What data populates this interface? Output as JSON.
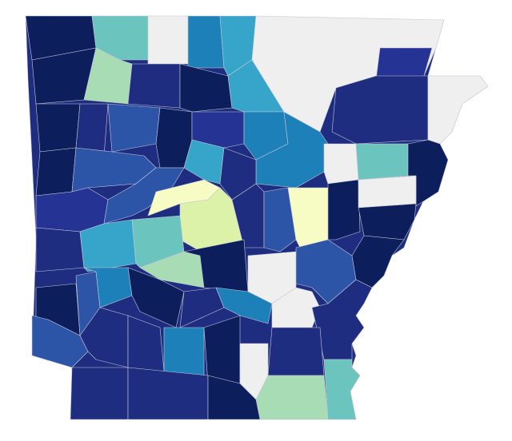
{
  "map": {
    "colors": {
      "navy": "#0c1f5c",
      "deep": "#1e2d80",
      "indigo": "#253494",
      "royal": "#2c55a8",
      "blue": "#1d80b8",
      "cyan": "#36a5c9",
      "teal": "#6cc4be",
      "mint": "#a7dcb5",
      "lime": "#dcf2a8",
      "yellow": "#f7fcc4",
      "gray": "#efefef"
    }
  }
}
